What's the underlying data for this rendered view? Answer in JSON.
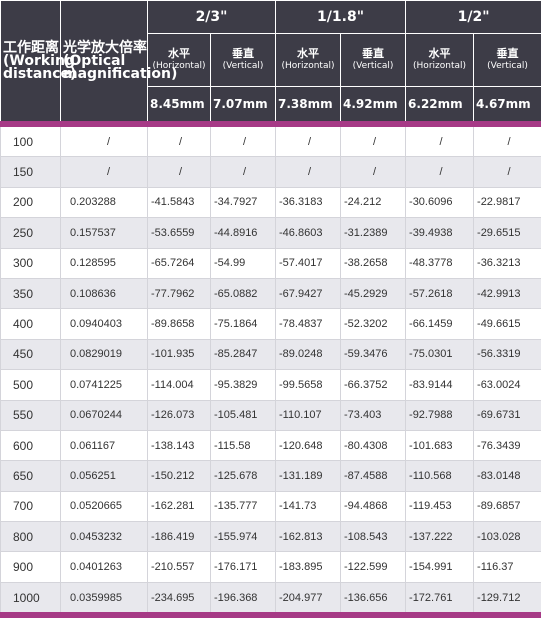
{
  "header": {
    "working_distance": [
      "工作距离",
      "(Working",
      "distance)"
    ],
    "magnification": [
      "光学放大倍率",
      "(Optical",
      "magnification)"
    ],
    "groups": [
      {
        "label": "2/3\"",
        "sub": [
          {
            "name": "水平",
            "en": "(Horizontal)",
            "size": "8.45mm"
          },
          {
            "name": "垂直",
            "en": "(Vertical)",
            "size": "7.07mm"
          }
        ]
      },
      {
        "label": "1/1.8\"",
        "sub": [
          {
            "name": "水平",
            "en": "(Horizontal)",
            "size": "7.38mm"
          },
          {
            "name": "垂直",
            "en": "(Vertical)",
            "size": "4.92mm"
          }
        ]
      },
      {
        "label": "1/2\"",
        "sub": [
          {
            "name": "水平",
            "en": "(Horizontal)",
            "size": "6.22mm"
          },
          {
            "name": "垂直",
            "en": "(Vertical)",
            "size": "4.67mm"
          }
        ]
      }
    ]
  },
  "table": {
    "rows": [
      [
        100,
        "/",
        "/",
        "/",
        "/",
        "/",
        "/",
        "/"
      ],
      [
        150,
        "/",
        "/",
        "/",
        "/",
        "/",
        "/",
        "/"
      ],
      [
        200,
        0.203288,
        -41.5843,
        -34.7927,
        -36.3183,
        -24.212,
        -30.6096,
        -22.9817
      ],
      [
        250,
        0.157537,
        -53.6559,
        -44.8916,
        -46.8603,
        -31.2389,
        -39.4938,
        -29.6515
      ],
      [
        300,
        0.128595,
        -65.7264,
        -54.99,
        -57.4017,
        -38.2658,
        -48.3778,
        -36.3213
      ],
      [
        350,
        0.108636,
        -77.7962,
        -65.0882,
        -67.9427,
        -45.2929,
        -57.2618,
        -42.9913
      ],
      [
        400,
        0.0940403,
        -89.8658,
        -75.1864,
        -78.4837,
        -52.3202,
        -66.1459,
        -49.6615
      ],
      [
        450,
        0.0829019,
        -101.935,
        -85.2847,
        -89.0248,
        -59.3476,
        -75.0301,
        -56.3319
      ],
      [
        500,
        0.0741225,
        -114.004,
        -95.3829,
        -99.5658,
        -66.3752,
        -83.9144,
        -63.0024
      ],
      [
        550,
        0.0670244,
        -126.073,
        -105.481,
        -110.107,
        -73.403,
        -92.7988,
        -69.6731
      ],
      [
        600,
        0.061167,
        -138.143,
        -115.58,
        -120.648,
        -80.4308,
        -101.683,
        -76.3439
      ],
      [
        650,
        0.056251,
        -150.212,
        -125.678,
        -131.189,
        -87.4588,
        -110.568,
        -83.0148
      ],
      [
        700,
        0.0520665,
        -162.281,
        -135.777,
        -141.73,
        -94.4868,
        -119.453,
        -89.6857
      ],
      [
        800,
        0.0453232,
        -186.419,
        -155.974,
        -162.813,
        -108.543,
        -137.222,
        -103.028
      ],
      [
        900,
        0.0401263,
        -210.557,
        -176.171,
        -183.895,
        -122.599,
        -154.991,
        -116.37
      ],
      [
        1000,
        0.0359985,
        -234.695,
        -196.368,
        -204.977,
        -136.656,
        -172.761,
        -129.712
      ]
    ]
  }
}
